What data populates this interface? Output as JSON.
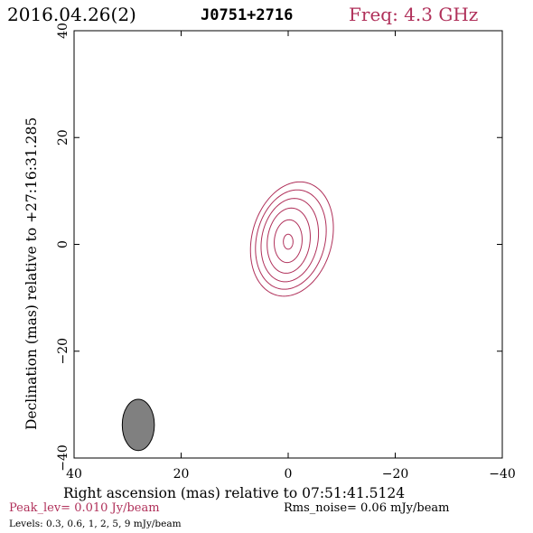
{
  "header": {
    "date": "2016.04.26(2)",
    "source": "J0751+2716",
    "freq": "Freq: 4.3 GHz"
  },
  "chart_data": {
    "type": "contour",
    "xlabel": "Right ascension (mas) relative to 07:51:41.5124",
    "ylabel": "Declination (mas) relative to +27:16:31.285",
    "xlim": [
      40,
      -40
    ],
    "ylim": [
      -40,
      40
    ],
    "x_ticks": [
      40,
      20,
      0,
      -20,
      -40
    ],
    "y_ticks": [
      -40,
      -20,
      0,
      20,
      40
    ],
    "x_tick_labels": [
      "40",
      "20",
      "0",
      "−20",
      "−40"
    ],
    "y_tick_labels": [
      "−40",
      "−20",
      "0",
      "20",
      "40"
    ],
    "contour_levels_mJy": [
      0.3,
      0.6,
      1,
      2,
      5,
      9
    ],
    "contours": [
      {
        "level": 0.3,
        "cx": -0.7,
        "cy": 1.0,
        "rx": 7.6,
        "ry": 10.7,
        "tilt": 0.14
      },
      {
        "level": 0.6,
        "cx": -0.5,
        "cy": 0.9,
        "rx": 6.5,
        "ry": 9.3,
        "tilt": 0.13
      },
      {
        "level": 1,
        "cx": -0.3,
        "cy": 0.8,
        "rx": 5.3,
        "ry": 7.8,
        "tilt": 0.11
      },
      {
        "level": 2,
        "cx": -0.1,
        "cy": 0.7,
        "rx": 4.0,
        "ry": 6.1,
        "tilt": 0.08
      },
      {
        "level": 5,
        "cx": 0.0,
        "cy": 0.6,
        "rx": 2.6,
        "ry": 4.0,
        "tilt": 0.05
      },
      {
        "level": 9,
        "cx": 0.0,
        "cy": 0.5,
        "rx": 0.9,
        "ry": 1.4,
        "tilt": 0.0
      }
    ],
    "beam": {
      "cx": 28,
      "cy": -33.8,
      "major": 9.6,
      "minor": 6.0,
      "pa": 0,
      "color": "#808080"
    },
    "contour_color": "#b0305a",
    "footer": {
      "peak": "Peak_lev=  0.010 Jy/beam",
      "rms": "Rms_noise= 0.06 mJy/beam",
      "levels": "Levels: 0.3, 0.6,    1,    2,    5,    9 mJy/beam"
    }
  }
}
